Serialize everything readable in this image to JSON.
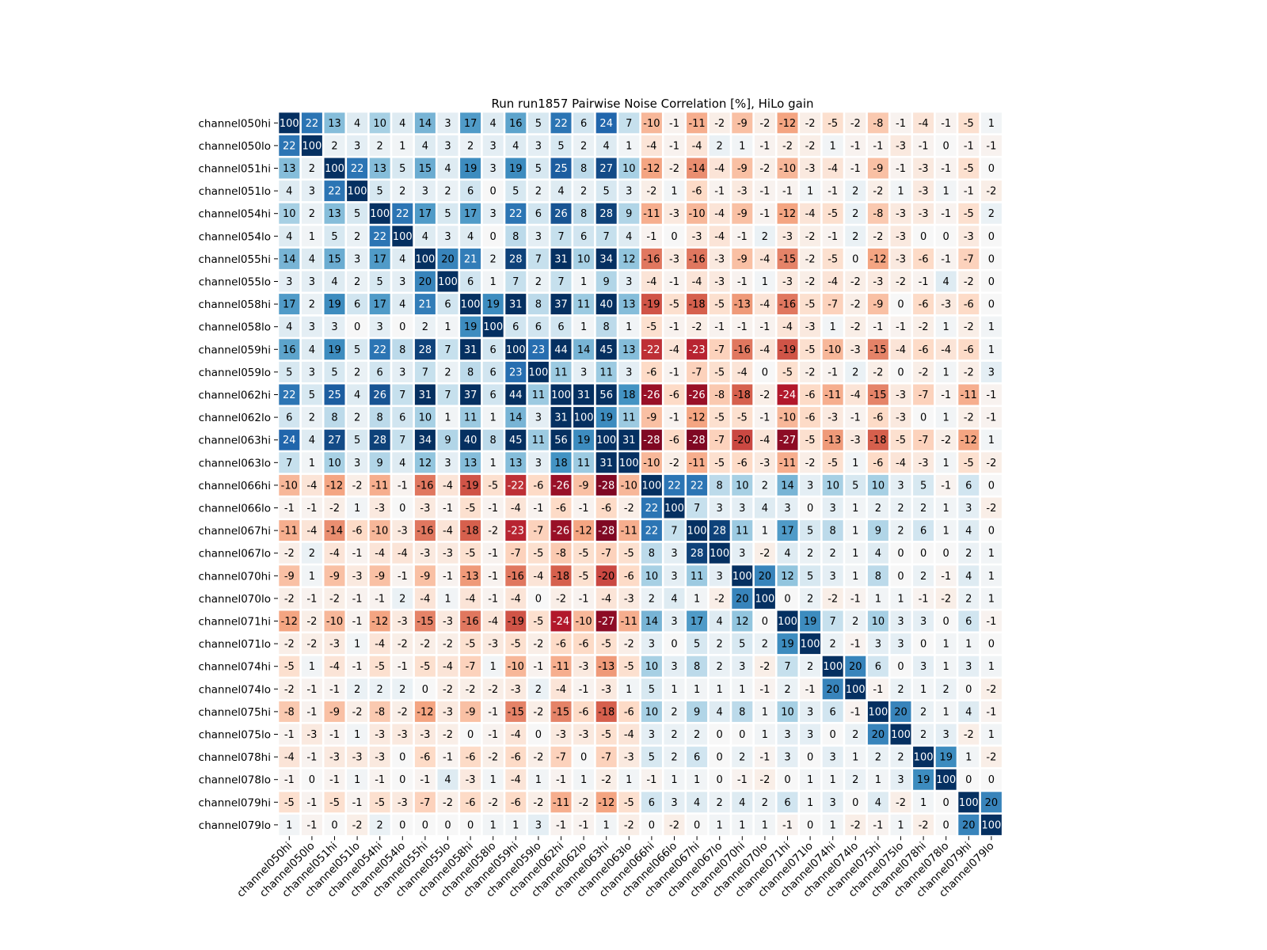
{
  "chart_data": {
    "type": "heatmap",
    "title": "Run run1857 Pairwise Noise Correlation [%], HiLo gain",
    "xlabel": "",
    "ylabel": "",
    "colormap": "RdBu_r",
    "vmin": -30,
    "vmax": 30,
    "labels": [
      "channel050hi",
      "channel050lo",
      "channel051hi",
      "channel051lo",
      "channel054hi",
      "channel054lo",
      "channel055hi",
      "channel055lo",
      "channel058hi",
      "channel058lo",
      "channel059hi",
      "channel059lo",
      "channel062hi",
      "channel062lo",
      "channel063hi",
      "channel063lo",
      "channel066hi",
      "channel066lo",
      "channel067hi",
      "channel067lo",
      "channel070hi",
      "channel070lo",
      "channel071hi",
      "channel071lo",
      "channel074hi",
      "channel074lo",
      "channel075hi",
      "channel075lo",
      "channel078hi",
      "channel078lo",
      "channel079hi",
      "channel079lo"
    ],
    "values": [
      [
        100,
        22,
        13,
        4,
        10,
        4,
        14,
        3,
        17,
        4,
        16,
        5,
        22,
        6,
        24,
        7,
        -10,
        -1,
        -11,
        -2,
        -9,
        -2,
        -12,
        -2,
        -5,
        -2,
        -8,
        -1,
        -4,
        -1,
        -5,
        1
      ],
      [
        22,
        100,
        2,
        3,
        2,
        1,
        4,
        3,
        2,
        3,
        4,
        3,
        5,
        2,
        4,
        1,
        -4,
        -1,
        -4,
        2,
        1,
        -1,
        -2,
        -2,
        1,
        -1,
        -1,
        -3,
        -1,
        0,
        -1,
        -1
      ],
      [
        13,
        2,
        100,
        22,
        13,
        5,
        15,
        4,
        19,
        3,
        19,
        5,
        25,
        8,
        27,
        10,
        -12,
        -2,
        -14,
        -4,
        -9,
        -2,
        -10,
        -3,
        -4,
        -1,
        -9,
        -1,
        -3,
        -1,
        -5,
        0
      ],
      [
        4,
        3,
        22,
        100,
        5,
        2,
        3,
        2,
        6,
        0,
        5,
        2,
        4,
        2,
        5,
        3,
        -2,
        1,
        -6,
        -1,
        -3,
        -1,
        -1,
        1,
        -1,
        2,
        -2,
        1,
        -3,
        1,
        -1,
        -2
      ],
      [
        10,
        2,
        13,
        5,
        100,
        22,
        17,
        5,
        17,
        3,
        22,
        6,
        26,
        8,
        28,
        9,
        -11,
        -3,
        -10,
        -4,
        -9,
        -1,
        -12,
        -4,
        -5,
        2,
        -8,
        -3,
        -3,
        -1,
        -5,
        2
      ],
      [
        4,
        1,
        5,
        2,
        22,
        100,
        4,
        3,
        4,
        0,
        8,
        3,
        7,
        6,
        7,
        4,
        -1,
        0,
        -3,
        -4,
        -1,
        2,
        -3,
        -2,
        -1,
        2,
        -2,
        -3,
        0,
        0,
        -3,
        0
      ],
      [
        14,
        4,
        15,
        3,
        17,
        4,
        100,
        20,
        21,
        2,
        28,
        7,
        31,
        10,
        34,
        12,
        -16,
        -3,
        -16,
        -3,
        -9,
        -4,
        -15,
        -2,
        -5,
        0,
        -12,
        -3,
        -6,
        -1,
        -7,
        0
      ],
      [
        3,
        3,
        4,
        2,
        5,
        3,
        20,
        100,
        6,
        1,
        7,
        2,
        7,
        1,
        9,
        3,
        -4,
        -1,
        -4,
        -3,
        -1,
        1,
        -3,
        -2,
        -4,
        -2,
        -3,
        -2,
        -1,
        4,
        -2,
        0
      ],
      [
        17,
        2,
        19,
        6,
        17,
        4,
        21,
        6,
        100,
        19,
        31,
        8,
        37,
        11,
        40,
        13,
        -19,
        -5,
        -18,
        -5,
        -13,
        -4,
        -16,
        -5,
        -7,
        -2,
        -9,
        0,
        -6,
        -3,
        -6,
        0
      ],
      [
        4,
        3,
        3,
        0,
        3,
        0,
        2,
        1,
        19,
        100,
        6,
        6,
        6,
        1,
        8,
        1,
        -5,
        -1,
        -2,
        -1,
        -1,
        -1,
        -4,
        -3,
        1,
        -2,
        -1,
        -1,
        -2,
        1,
        -2,
        1
      ],
      [
        16,
        4,
        19,
        5,
        22,
        8,
        28,
        7,
        31,
        6,
        100,
        23,
        44,
        14,
        45,
        13,
        -22,
        -4,
        -23,
        -7,
        -16,
        -4,
        -19,
        -5,
        -10,
        -3,
        -15,
        -4,
        -6,
        -4,
        -6,
        1
      ],
      [
        5,
        3,
        5,
        2,
        6,
        3,
        7,
        2,
        8,
        6,
        23,
        100,
        11,
        3,
        11,
        3,
        -6,
        -1,
        -7,
        -5,
        -4,
        0,
        -5,
        -2,
        -1,
        2,
        -2,
        0,
        -2,
        1,
        -2,
        3
      ],
      [
        22,
        5,
        25,
        4,
        26,
        7,
        31,
        7,
        37,
        6,
        44,
        11,
        100,
        31,
        56,
        18,
        -26,
        -6,
        -26,
        -8,
        -18,
        -2,
        -24,
        -6,
        -11,
        -4,
        -15,
        -3,
        -7,
        -1,
        -11,
        -1
      ],
      [
        6,
        2,
        8,
        2,
        8,
        6,
        10,
        1,
        11,
        1,
        14,
        3,
        31,
        100,
        19,
        11,
        -9,
        -1,
        -12,
        -5,
        -5,
        -1,
        -10,
        -6,
        -3,
        -1,
        -6,
        -3,
        0,
        1,
        -2,
        -1
      ],
      [
        24,
        4,
        27,
        5,
        28,
        7,
        34,
        9,
        40,
        8,
        45,
        11,
        56,
        19,
        100,
        31,
        -28,
        -6,
        -28,
        -7,
        -20,
        -4,
        -27,
        -5,
        -13,
        -3,
        -18,
        -5,
        -7,
        -2,
        -12,
        1
      ],
      [
        7,
        1,
        10,
        3,
        9,
        4,
        12,
        3,
        13,
        1,
        13,
        3,
        18,
        11,
        31,
        100,
        -10,
        -2,
        -11,
        -5,
        -6,
        -3,
        -11,
        -2,
        -5,
        1,
        -6,
        -4,
        -3,
        1,
        -5,
        -2
      ],
      [
        -10,
        -4,
        -12,
        -2,
        -11,
        -1,
        -16,
        -4,
        -19,
        -5,
        -22,
        -6,
        -26,
        -9,
        -28,
        -10,
        100,
        22,
        22,
        8,
        10,
        2,
        14,
        3,
        10,
        5,
        10,
        3,
        5,
        -1,
        6,
        0
      ],
      [
        -1,
        -1,
        -2,
        1,
        -3,
        0,
        -3,
        -1,
        -5,
        -1,
        -4,
        -1,
        -6,
        -1,
        -6,
        -2,
        22,
        100,
        7,
        3,
        3,
        4,
        3,
        0,
        3,
        1,
        2,
        2,
        2,
        1,
        3,
        -2
      ],
      [
        -11,
        -4,
        -14,
        -6,
        -10,
        -3,
        -16,
        -4,
        -18,
        -2,
        -23,
        -7,
        -26,
        -12,
        -28,
        -11,
        22,
        7,
        100,
        28,
        11,
        1,
        17,
        5,
        8,
        1,
        9,
        2,
        6,
        1,
        4,
        0
      ],
      [
        -2,
        2,
        -4,
        -1,
        -4,
        -4,
        -3,
        -3,
        -5,
        -1,
        -7,
        -5,
        -8,
        -5,
        -7,
        -5,
        8,
        3,
        28,
        100,
        3,
        -2,
        4,
        2,
        2,
        1,
        4,
        0,
        0,
        0,
        2,
        1
      ],
      [
        -9,
        1,
        -9,
        -3,
        -9,
        -1,
        -9,
        -1,
        -13,
        -1,
        -16,
        -4,
        -18,
        -5,
        -20,
        -6,
        10,
        3,
        11,
        3,
        100,
        20,
        12,
        5,
        3,
        1,
        8,
        0,
        2,
        -1,
        4,
        1
      ],
      [
        -2,
        -1,
        -2,
        -1,
        -1,
        2,
        -4,
        1,
        -4,
        -1,
        -4,
        0,
        -2,
        -1,
        -4,
        -3,
        2,
        4,
        1,
        -2,
        20,
        100,
        0,
        2,
        -2,
        -1,
        1,
        1,
        -1,
        -2,
        2,
        1
      ],
      [
        -12,
        -2,
        -10,
        -1,
        -12,
        -3,
        -15,
        -3,
        -16,
        -4,
        -19,
        -5,
        -24,
        -10,
        -27,
        -11,
        14,
        3,
        17,
        4,
        12,
        0,
        100,
        19,
        7,
        2,
        10,
        3,
        3,
        0,
        6,
        -1
      ],
      [
        -2,
        -2,
        -3,
        1,
        -4,
        -2,
        -2,
        -2,
        -5,
        -3,
        -5,
        -2,
        -6,
        -6,
        -5,
        -2,
        3,
        0,
        5,
        2,
        5,
        2,
        19,
        100,
        2,
        -1,
        3,
        3,
        0,
        1,
        1,
        0
      ],
      [
        -5,
        1,
        -4,
        -1,
        -5,
        -1,
        -5,
        -4,
        -7,
        1,
        -10,
        -1,
        -11,
        -3,
        -13,
        -5,
        10,
        3,
        8,
        2,
        3,
        -2,
        7,
        2,
        100,
        20,
        6,
        0,
        3,
        1,
        3,
        1
      ],
      [
        -2,
        -1,
        -1,
        2,
        2,
        2,
        0,
        -2,
        -2,
        -2,
        -3,
        2,
        -4,
        -1,
        -3,
        1,
        5,
        1,
        1,
        1,
        1,
        -1,
        2,
        -1,
        20,
        100,
        -1,
        2,
        1,
        2,
        0,
        -2
      ],
      [
        -8,
        -1,
        -9,
        -2,
        -8,
        -2,
        -12,
        -3,
        -9,
        -1,
        -15,
        -2,
        -15,
        -6,
        -18,
        -6,
        10,
        2,
        9,
        4,
        8,
        1,
        10,
        3,
        6,
        -1,
        100,
        20,
        2,
        1,
        4,
        -1
      ],
      [
        -1,
        -3,
        -1,
        1,
        -3,
        -3,
        -3,
        -2,
        0,
        -1,
        -4,
        0,
        -3,
        -3,
        -5,
        -4,
        3,
        2,
        2,
        0,
        0,
        1,
        3,
        3,
        0,
        2,
        20,
        100,
        2,
        3,
        -2,
        1
      ],
      [
        -4,
        -1,
        -3,
        -3,
        -3,
        0,
        -6,
        -1,
        -6,
        -2,
        -6,
        -2,
        -7,
        0,
        -7,
        -3,
        5,
        2,
        6,
        0,
        2,
        -1,
        3,
        0,
        3,
        1,
        2,
        2,
        100,
        19,
        1,
        -2
      ],
      [
        -1,
        0,
        -1,
        1,
        -1,
        0,
        -1,
        4,
        -3,
        1,
        -4,
        1,
        -1,
        1,
        -2,
        1,
        -1,
        1,
        1,
        0,
        -1,
        -2,
        0,
        1,
        1,
        2,
        1,
        3,
        19,
        100,
        0,
        0
      ],
      [
        -5,
        -1,
        -5,
        -1,
        -5,
        -3,
        -7,
        -2,
        -6,
        -2,
        -6,
        -2,
        -11,
        -2,
        -12,
        -5,
        6,
        3,
        4,
        2,
        4,
        2,
        6,
        1,
        3,
        0,
        4,
        -2,
        1,
        0,
        100,
        20
      ],
      [
        1,
        -1,
        0,
        -2,
        2,
        0,
        0,
        0,
        0,
        1,
        1,
        3,
        -1,
        -1,
        1,
        -2,
        0,
        -2,
        0,
        1,
        1,
        1,
        -1,
        0,
        1,
        -2,
        -1,
        1,
        -2,
        0,
        20,
        100
      ]
    ]
  }
}
